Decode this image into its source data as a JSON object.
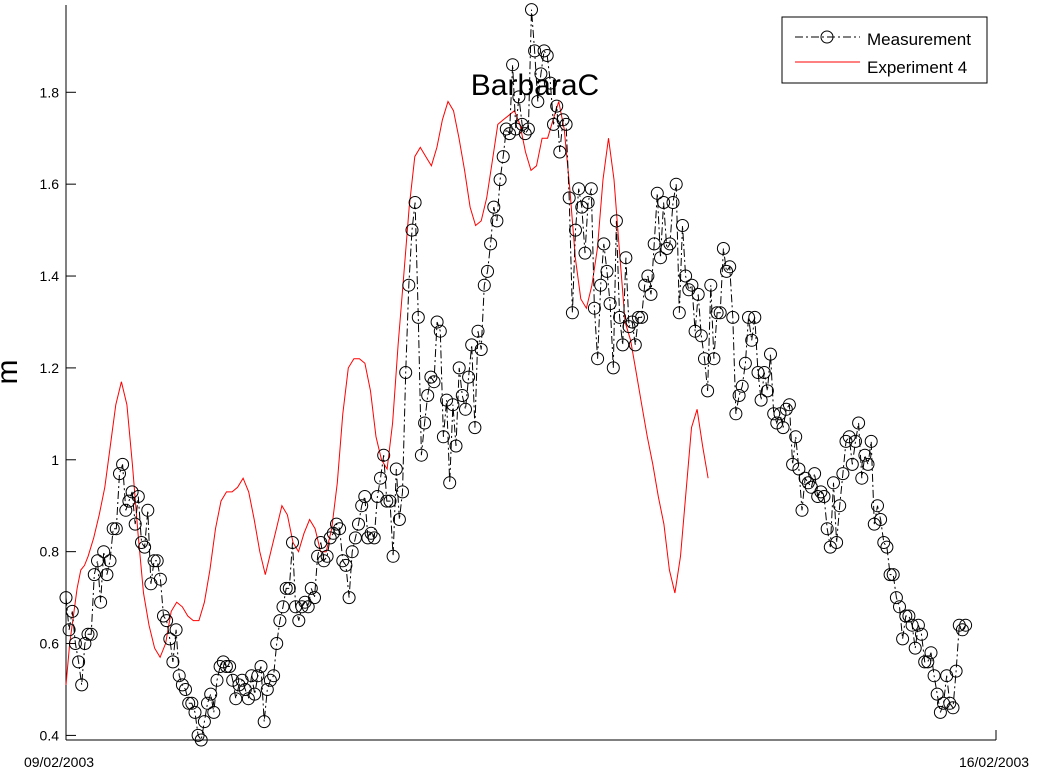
{
  "chart_data": {
    "type": "line",
    "title": "BarbaraC",
    "xlabel": "",
    "ylabel": "m",
    "x_ticks": [
      "09/02/2003",
      "16/02/2003"
    ],
    "xlim": [
      "09/02/2003",
      "16/02/2003"
    ],
    "ylim": [
      0.39,
      1.99
    ],
    "y_ticks": [
      0.4,
      0.6,
      0.8,
      1,
      1.2,
      1.4,
      1.6,
      1.8
    ],
    "y_tick_labels": [
      "0.4",
      "0.6",
      "0.8",
      "1",
      "1.2",
      "1.4",
      "1.6",
      "1.8"
    ],
    "grid": false,
    "legend_position": "top-right",
    "series": [
      {
        "name": "Measurement",
        "color": "#000000",
        "style": "dash-dot line with open circle markers",
        "x_start": "09/02/2003",
        "x_end": "15/02/2003 18:30",
        "values": [
          0.7,
          0.63,
          0.67,
          0.6,
          0.56,
          0.51,
          0.6,
          0.62,
          0.62,
          0.75,
          0.78,
          0.69,
          0.8,
          0.75,
          0.78,
          0.85,
          0.85,
          0.97,
          0.99,
          0.89,
          0.91,
          0.93,
          0.86,
          0.92,
          0.82,
          0.81,
          0.89,
          0.73,
          0.78,
          0.78,
          0.74,
          0.66,
          0.65,
          0.61,
          0.56,
          0.63,
          0.53,
          0.51,
          0.5,
          0.47,
          0.47,
          0.45,
          0.4,
          0.39,
          0.43,
          0.47,
          0.49,
          0.45,
          0.52,
          0.55,
          0.56,
          0.55,
          0.55,
          0.52,
          0.48,
          0.51,
          0.52,
          0.5,
          0.48,
          0.53,
          0.49,
          0.53,
          0.55,
          0.43,
          0.5,
          0.52,
          0.53,
          0.6,
          0.65,
          0.68,
          0.72,
          0.72,
          0.82,
          0.68,
          0.65,
          0.68,
          0.69,
          0.68,
          0.72,
          0.7,
          0.79,
          0.82,
          0.78,
          0.79,
          0.83,
          0.84,
          0.86,
          0.85,
          0.78,
          0.77,
          0.7,
          0.8,
          0.83,
          0.86,
          0.9,
          0.92,
          0.83,
          0.84,
          0.83,
          0.92,
          0.96,
          1.01,
          0.91,
          0.91,
          0.79,
          0.98,
          0.87,
          0.93,
          1.19,
          1.38,
          1.5,
          1.56,
          1.31,
          1.01,
          1.08,
          1.14,
          1.18,
          1.17,
          1.3,
          1.28,
          1.05,
          1.13,
          0.95,
          1.12,
          1.03,
          1.2,
          1.14,
          1.11,
          1.18,
          1.25,
          1.07,
          1.28,
          1.24,
          1.38,
          1.41,
          1.47,
          1.55,
          1.52,
          1.61,
          1.66,
          1.72,
          1.71,
          1.86,
          1.72,
          1.79,
          1.73,
          1.71,
          1.72,
          1.98,
          1.89,
          1.78,
          1.84,
          1.89,
          1.88,
          1.82,
          1.73,
          1.77,
          1.67,
          1.74,
          1.73,
          1.57,
          1.32,
          1.5,
          1.59,
          1.55,
          1.45,
          1.56,
          1.59,
          1.33,
          1.22,
          1.38,
          1.47,
          1.41,
          1.34,
          1.2,
          1.52,
          1.31,
          1.25,
          1.44,
          1.29,
          1.3,
          1.25,
          1.31,
          1.31,
          1.38,
          1.4,
          1.36,
          1.47,
          1.58,
          1.44,
          1.56,
          1.46,
          1.47,
          1.56,
          1.6,
          1.32,
          1.51,
          1.4,
          1.37,
          1.38,
          1.28,
          1.36,
          1.27,
          1.22,
          1.15,
          1.38,
          1.22,
          1.32,
          1.32,
          1.46,
          1.41,
          1.42,
          1.31,
          1.1,
          1.14,
          1.16,
          1.21,
          1.31,
          1.26,
          1.31,
          1.19,
          1.13,
          1.19,
          1.15,
          1.23,
          1.1,
          1.08,
          1.1,
          1.07,
          1.11,
          1.12,
          0.99,
          1.05,
          0.98,
          0.89,
          0.96,
          0.95,
          0.94,
          0.97,
          0.92,
          0.93,
          0.92,
          0.85,
          0.81,
          0.95,
          0.82,
          0.9,
          0.97,
          1.04,
          1.05,
          0.99,
          1.04,
          1.08,
          0.96,
          1.01,
          0.99,
          1.04,
          0.86,
          0.9,
          0.87,
          0.82,
          0.81,
          0.75,
          0.75,
          0.7,
          0.68,
          0.61,
          0.66,
          0.66,
          0.64,
          0.59,
          0.64,
          0.62,
          0.56,
          0.56,
          0.58,
          0.53,
          0.49,
          0.45,
          0.47,
          0.53,
          0.47,
          0.46,
          0.54,
          0.64,
          0.63,
          0.64
        ]
      },
      {
        "name": "Experiment 4",
        "color": "#ff0000",
        "style": "solid line",
        "points": [
          [
            "09/02/2003 00:00",
            0.51
          ],
          [
            "09/02/2003 00:40",
            0.6
          ],
          [
            "09/02/2003 01:20",
            0.66
          ],
          [
            "09/02/2003 02:00",
            0.72
          ],
          [
            "09/02/2003 02:40",
            0.76
          ],
          [
            "09/02/2003 03:20",
            0.77
          ],
          [
            "09/02/2003 04:00",
            0.79
          ],
          [
            "09/02/2003 05:00",
            0.83
          ],
          [
            "09/02/2003 06:00",
            0.88
          ],
          [
            "09/02/2003 07:00",
            0.94
          ],
          [
            "09/02/2003 08:00",
            1.03
          ],
          [
            "09/02/2003 09:00",
            1.12
          ],
          [
            "09/02/2003 10:00",
            1.17
          ],
          [
            "09/02/2003 11:00",
            1.12
          ],
          [
            "09/02/2003 12:00",
            0.99
          ],
          [
            "09/02/2003 13:00",
            0.84
          ],
          [
            "09/02/2003 14:00",
            0.71
          ],
          [
            "09/02/2003 15:00",
            0.64
          ],
          [
            "09/02/2003 16:00",
            0.59
          ],
          [
            "09/02/2003 17:00",
            0.57
          ],
          [
            "09/02/2003 18:00",
            0.6
          ],
          [
            "09/02/2003 19:00",
            0.67
          ],
          [
            "09/02/2003 20:00",
            0.69
          ],
          [
            "09/02/2003 21:00",
            0.68
          ],
          [
            "09/02/2003 22:00",
            0.66
          ],
          [
            "09/02/2003 23:00",
            0.65
          ],
          [
            "10/02/2003 00:00",
            0.65
          ],
          [
            "10/02/2003 01:00",
            0.69
          ],
          [
            "10/02/2003 02:00",
            0.76
          ],
          [
            "10/02/2003 03:00",
            0.85
          ],
          [
            "10/02/2003 04:00",
            0.91
          ],
          [
            "10/02/2003 05:00",
            0.93
          ],
          [
            "10/02/2003 06:00",
            0.93
          ],
          [
            "10/02/2003 07:00",
            0.94
          ],
          [
            "10/02/2003 08:00",
            0.96
          ],
          [
            "10/02/2003 09:00",
            0.93
          ],
          [
            "10/02/2003 10:00",
            0.87
          ],
          [
            "10/02/2003 11:00",
            0.8
          ],
          [
            "10/02/2003 12:00",
            0.75
          ],
          [
            "10/02/2003 13:00",
            0.8
          ],
          [
            "10/02/2003 14:00",
            0.85
          ],
          [
            "10/02/2003 15:00",
            0.9
          ],
          [
            "10/02/2003 16:00",
            0.88
          ],
          [
            "10/02/2003 17:00",
            0.82
          ],
          [
            "10/02/2003 18:00",
            0.8
          ],
          [
            "10/02/2003 19:00",
            0.84
          ],
          [
            "10/02/2003 20:00",
            0.87
          ],
          [
            "10/02/2003 21:00",
            0.85
          ],
          [
            "10/02/2003 22:00",
            0.8
          ],
          [
            "10/02/2003 23:00",
            0.8
          ],
          [
            "11/02/2003 00:00",
            0.85
          ],
          [
            "11/02/2003 01:00",
            0.95
          ],
          [
            "11/02/2003 02:00",
            1.1
          ],
          [
            "11/02/2003 03:00",
            1.2
          ],
          [
            "11/02/2003 04:00",
            1.22
          ],
          [
            "11/02/2003 05:00",
            1.22
          ],
          [
            "11/02/2003 06:00",
            1.21
          ],
          [
            "11/02/2003 07:00",
            1.15
          ],
          [
            "11/02/2003 08:00",
            1.05
          ],
          [
            "11/02/2003 09:00",
            1.0
          ],
          [
            "11/02/2003 10:00",
            0.98
          ],
          [
            "11/02/2003 11:00",
            1.08
          ],
          [
            "11/02/2003 12:00",
            1.25
          ],
          [
            "11/02/2003 13:00",
            1.4
          ],
          [
            "11/02/2003 14:00",
            1.55
          ],
          [
            "11/02/2003 15:00",
            1.66
          ],
          [
            "11/02/2003 16:00",
            1.68
          ],
          [
            "11/02/2003 17:00",
            1.66
          ],
          [
            "11/02/2003 18:00",
            1.64
          ],
          [
            "11/02/2003 19:00",
            1.68
          ],
          [
            "11/02/2003 20:00",
            1.74
          ],
          [
            "11/02/2003 21:00",
            1.78
          ],
          [
            "11/02/2003 22:00",
            1.76
          ],
          [
            "11/02/2003 23:00",
            1.7
          ],
          [
            "12/02/2003 00:00",
            1.63
          ],
          [
            "12/02/2003 01:00",
            1.55
          ],
          [
            "12/02/2003 02:00",
            1.51
          ],
          [
            "12/02/2003 03:00",
            1.52
          ],
          [
            "12/02/2003 04:00",
            1.57
          ],
          [
            "12/02/2003 05:00",
            1.65
          ],
          [
            "12/02/2003 06:00",
            1.73
          ],
          [
            "12/02/2003 07:00",
            1.74
          ],
          [
            "12/02/2003 08:00",
            1.75
          ],
          [
            "12/02/2003 09:00",
            1.76
          ],
          [
            "12/02/2003 10:00",
            1.73
          ],
          [
            "12/02/2003 11:00",
            1.67
          ],
          [
            "12/02/2003 12:00",
            1.63
          ],
          [
            "12/02/2003 13:00",
            1.64
          ],
          [
            "12/02/2003 14:00",
            1.7
          ],
          [
            "12/02/2003 15:00",
            1.7
          ],
          [
            "12/02/2003 16:00",
            1.74
          ],
          [
            "12/02/2003 17:00",
            1.78
          ],
          [
            "12/02/2003 18:00",
            1.72
          ],
          [
            "12/02/2003 19:00",
            1.59
          ],
          [
            "12/02/2003 20:00",
            1.44
          ],
          [
            "12/02/2003 21:00",
            1.35
          ],
          [
            "12/02/2003 22:00",
            1.33
          ],
          [
            "12/02/2003 23:00",
            1.38
          ],
          [
            "13/02/2003 00:00",
            1.46
          ],
          [
            "13/02/2003 01:00",
            1.61
          ],
          [
            "13/02/2003 02:00",
            1.7
          ],
          [
            "13/02/2003 03:00",
            1.61
          ],
          [
            "13/02/2003 04:00",
            1.45
          ],
          [
            "13/02/2003 05:00",
            1.3
          ],
          [
            "13/02/2003 06:00",
            1.26
          ],
          [
            "13/02/2003 07:00",
            1.19
          ],
          [
            "13/02/2003 08:00",
            1.12
          ],
          [
            "13/02/2003 09:00",
            1.05
          ],
          [
            "13/02/2003 10:00",
            0.99
          ],
          [
            "13/02/2003 11:00",
            0.92
          ],
          [
            "13/02/2003 12:00",
            0.86
          ],
          [
            "13/02/2003 13:00",
            0.76
          ],
          [
            "13/02/2003 14:00",
            0.71
          ],
          [
            "13/02/2003 15:00",
            0.79
          ],
          [
            "13/02/2003 16:00",
            0.93
          ],
          [
            "13/02/2003 17:00",
            1.07
          ],
          [
            "13/02/2003 18:00",
            1.11
          ],
          [
            "13/02/2003 19:00",
            1.03
          ],
          [
            "13/02/2003 20:00",
            0.96
          ]
        ]
      }
    ]
  }
}
